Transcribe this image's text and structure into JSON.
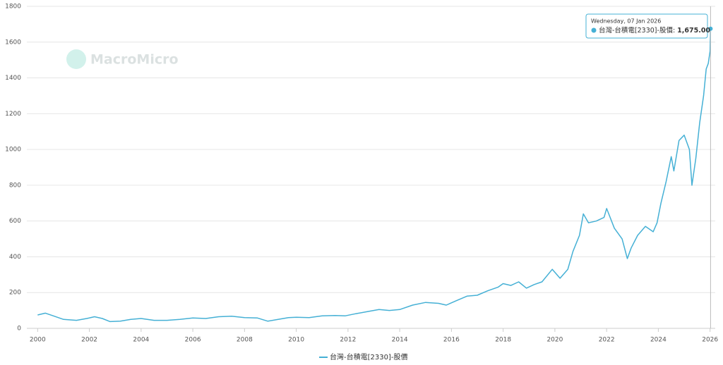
{
  "chart_data": {
    "type": "line",
    "watermark": "MacroMicro",
    "x": [
      2000.0,
      2000.3,
      2000.6,
      2001.0,
      2001.5,
      2001.9,
      2002.2,
      2002.5,
      2002.8,
      2003.2,
      2003.6,
      2004.0,
      2004.5,
      2005.0,
      2005.5,
      2006.0,
      2006.5,
      2007.0,
      2007.5,
      2008.0,
      2008.5,
      2008.9,
      2009.3,
      2009.7,
      2010.0,
      2010.5,
      2011.0,
      2011.5,
      2011.9,
      2012.3,
      2012.8,
      2013.2,
      2013.6,
      2014.0,
      2014.5,
      2015.0,
      2015.5,
      2015.8,
      2016.2,
      2016.6,
      2017.0,
      2017.4,
      2017.8,
      2018.0,
      2018.3,
      2018.6,
      2018.9,
      2019.2,
      2019.5,
      2019.9,
      2020.2,
      2020.5,
      2020.7,
      2020.95,
      2021.1,
      2021.3,
      2021.6,
      2021.9,
      2022.0,
      2022.3,
      2022.6,
      2022.8,
      2022.95,
      2023.2,
      2023.5,
      2023.8,
      2023.95,
      2024.1,
      2024.3,
      2024.5,
      2024.6,
      2024.8,
      2025.0,
      2025.2,
      2025.3,
      2025.45,
      2025.6,
      2025.75,
      2025.85,
      2025.93,
      2026.0,
      2026.02
    ],
    "series": [
      {
        "name": "台灣-台積電[2330]-股價",
        "color": "#45b0d5",
        "values": [
          75,
          85,
          70,
          50,
          45,
          55,
          65,
          55,
          38,
          40,
          50,
          55,
          45,
          45,
          50,
          58,
          55,
          65,
          68,
          60,
          58,
          40,
          50,
          60,
          62,
          60,
          70,
          72,
          70,
          82,
          95,
          105,
          100,
          105,
          130,
          145,
          140,
          130,
          155,
          180,
          185,
          210,
          230,
          250,
          240,
          260,
          225,
          245,
          260,
          330,
          280,
          330,
          430,
          520,
          640,
          590,
          600,
          620,
          670,
          560,
          500,
          390,
          450,
          520,
          570,
          540,
          590,
          700,
          820,
          960,
          880,
          1050,
          1080,
          1000,
          800,
          950,
          1150,
          1300,
          1450,
          1480,
          1550,
          1675
        ]
      }
    ],
    "xlim": [
      1999.8,
      2026.2
    ],
    "xticks": [
      2000,
      2002,
      2004,
      2006,
      2008,
      2010,
      2012,
      2014,
      2016,
      2018,
      2020,
      2022,
      2024,
      2026
    ],
    "ylim": [
      0,
      1800
    ],
    "yticks": [
      0,
      200,
      400,
      600,
      800,
      1000,
      1200,
      1400,
      1600,
      1800
    ],
    "grid": true,
    "legend": "bottom",
    "tooltip": {
      "date": "Wednesday, 07 Jan 2026",
      "x": 2026.02,
      "series_label": "台灣-台積電[2330]-股價:",
      "value": 1675,
      "value_label": "1,675.00"
    }
  }
}
